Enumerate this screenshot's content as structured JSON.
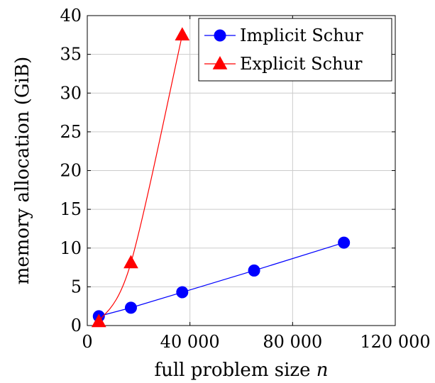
{
  "chart_data": {
    "type": "line",
    "title": "",
    "xlabel": "full problem size",
    "xlabel_var": "n",
    "ylabel": "memory allocation (GiB)",
    "xlim": [
      0,
      120000
    ],
    "ylim": [
      0,
      40
    ],
    "x_ticks": [
      0,
      40000,
      80000,
      120000
    ],
    "x_tick_labels": [
      "0",
      "40 000",
      "80 000",
      "120 000"
    ],
    "y_ticks": [
      0,
      5,
      10,
      15,
      20,
      25,
      30,
      35,
      40
    ],
    "y_tick_labels": [
      "0",
      "5",
      "10",
      "15",
      "20",
      "25",
      "30",
      "35",
      "40"
    ],
    "grid": true,
    "legend_position": "top-right",
    "series": [
      {
        "name": "Implicit Schur",
        "color": "#0000ff",
        "marker": "circle",
        "x": [
          4500,
          17000,
          37000,
          65000,
          100000
        ],
        "y": [
          1.2,
          2.3,
          4.3,
          7.1,
          10.7
        ]
      },
      {
        "name": "Explicit Schur",
        "color": "#ff0000",
        "marker": "triangle",
        "x": [
          4500,
          17000,
          37000
        ],
        "y": [
          0.5,
          8.1,
          37.5
        ]
      }
    ]
  }
}
